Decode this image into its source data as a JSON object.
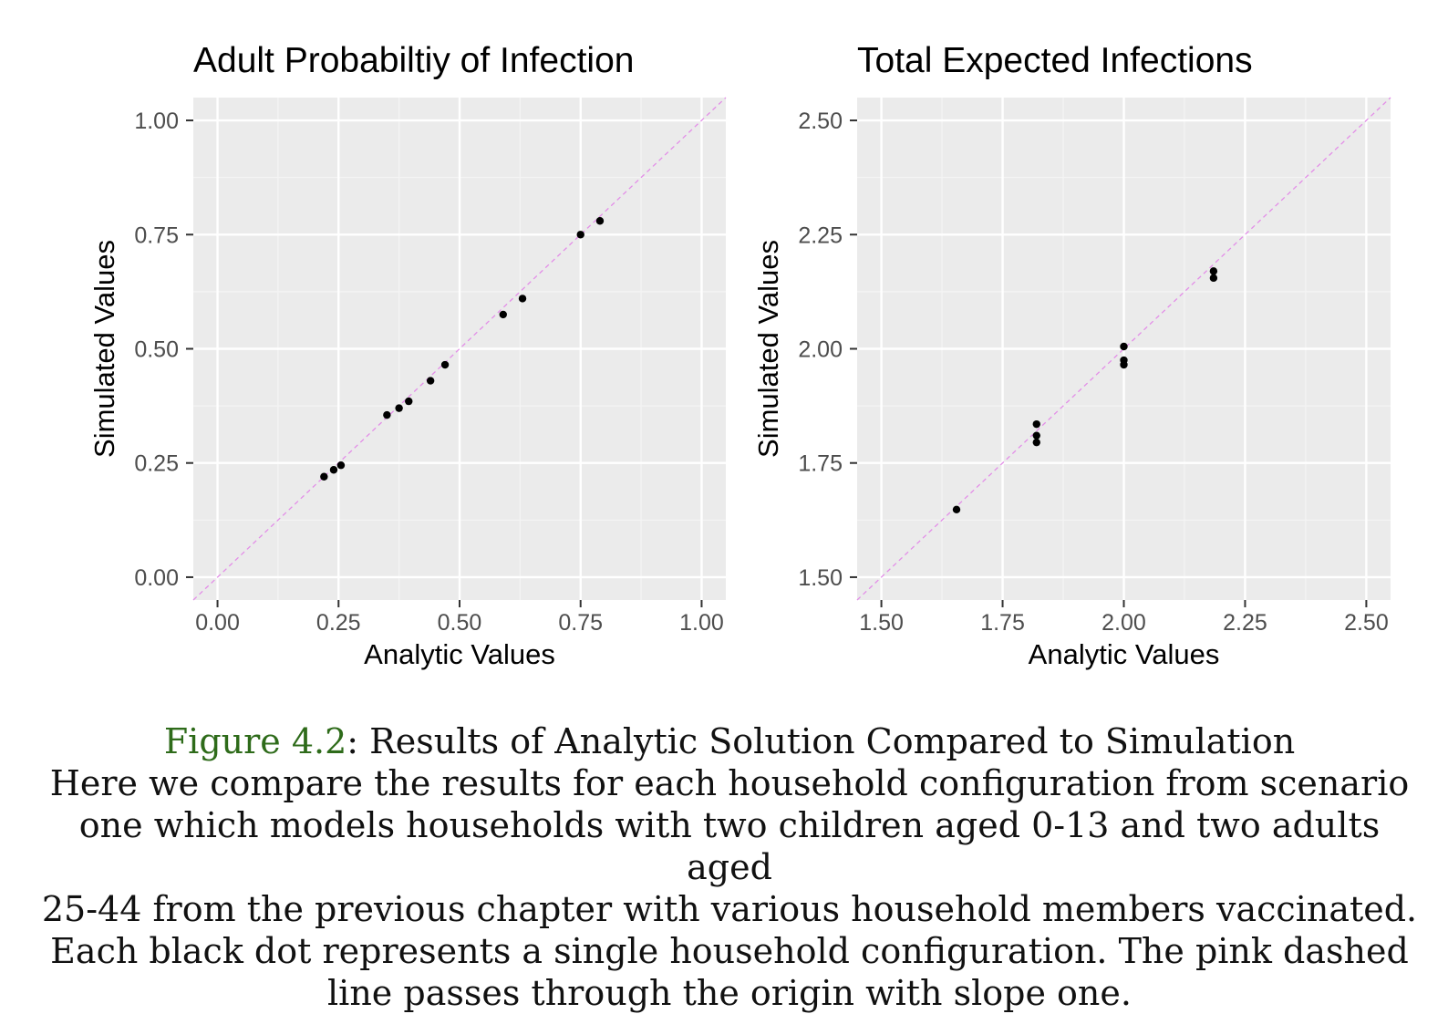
{
  "chart_data": [
    {
      "type": "scatter",
      "title": "Adult Probabiltiy of Infection",
      "xlabel": "Analytic Values",
      "ylabel": "Simulated Values",
      "xlim": [
        -0.05,
        1.05
      ],
      "ylim": [
        -0.05,
        1.05
      ],
      "xticks": [
        "0.00",
        "0.25",
        "0.50",
        "0.75",
        "1.00"
      ],
      "yticks": [
        "0.00",
        "0.25",
        "0.50",
        "0.75",
        "1.00"
      ],
      "grid": true,
      "reference_line": {
        "slope": 1,
        "intercept": 0,
        "style": "dashed",
        "color": "#e38ee8"
      },
      "points": [
        {
          "x": 0.22,
          "y": 0.22
        },
        {
          "x": 0.24,
          "y": 0.235
        },
        {
          "x": 0.255,
          "y": 0.245
        },
        {
          "x": 0.35,
          "y": 0.355
        },
        {
          "x": 0.375,
          "y": 0.37
        },
        {
          "x": 0.395,
          "y": 0.385
        },
        {
          "x": 0.44,
          "y": 0.43
        },
        {
          "x": 0.47,
          "y": 0.465
        },
        {
          "x": 0.59,
          "y": 0.575
        },
        {
          "x": 0.63,
          "y": 0.61
        },
        {
          "x": 0.75,
          "y": 0.75
        },
        {
          "x": 0.79,
          "y": 0.78
        }
      ]
    },
    {
      "type": "scatter",
      "title": "Total Expected Infections",
      "xlabel": "Analytic Values",
      "ylabel": "Simulated Values",
      "xlim": [
        1.45,
        2.55
      ],
      "ylim": [
        1.45,
        2.55
      ],
      "xticks": [
        "1.50",
        "1.75",
        "2.00",
        "2.25",
        "2.50"
      ],
      "yticks": [
        "1.50",
        "1.75",
        "2.00",
        "2.25",
        "2.50"
      ],
      "grid": true,
      "reference_line": {
        "slope": 1,
        "intercept": 0,
        "style": "dashed",
        "color": "#e38ee8"
      },
      "points": [
        {
          "x": 1.655,
          "y": 1.648
        },
        {
          "x": 1.82,
          "y": 1.835
        },
        {
          "x": 1.82,
          "y": 1.81
        },
        {
          "x": 1.82,
          "y": 1.795
        },
        {
          "x": 2.0,
          "y": 2.005
        },
        {
          "x": 2.0,
          "y": 1.975
        },
        {
          "x": 2.0,
          "y": 1.965
        },
        {
          "x": 2.185,
          "y": 2.17
        },
        {
          "x": 2.185,
          "y": 2.155
        }
      ]
    }
  ],
  "caption": {
    "figure_label": "Figure 4.2",
    "title_text": ": Results of Analytic Solution Compared to Simulation",
    "lines": [
      "Here we compare the results for each household configuration from scenario",
      "one which models households with two children aged 0-13 and two adults aged",
      "25-44 from the previous chapter with various household members vaccinated.",
      "Each black dot represents a single household configuration. The pink dashed",
      "line passes through the origin with slope one."
    ]
  },
  "colors": {
    "panel_bg": "#ebebeb",
    "grid_major": "#ffffff",
    "grid_minor": "#f4f4f4",
    "point": "#000000",
    "tick_text": "#4d4d4d",
    "figure_label": "#2e6b1a"
  }
}
